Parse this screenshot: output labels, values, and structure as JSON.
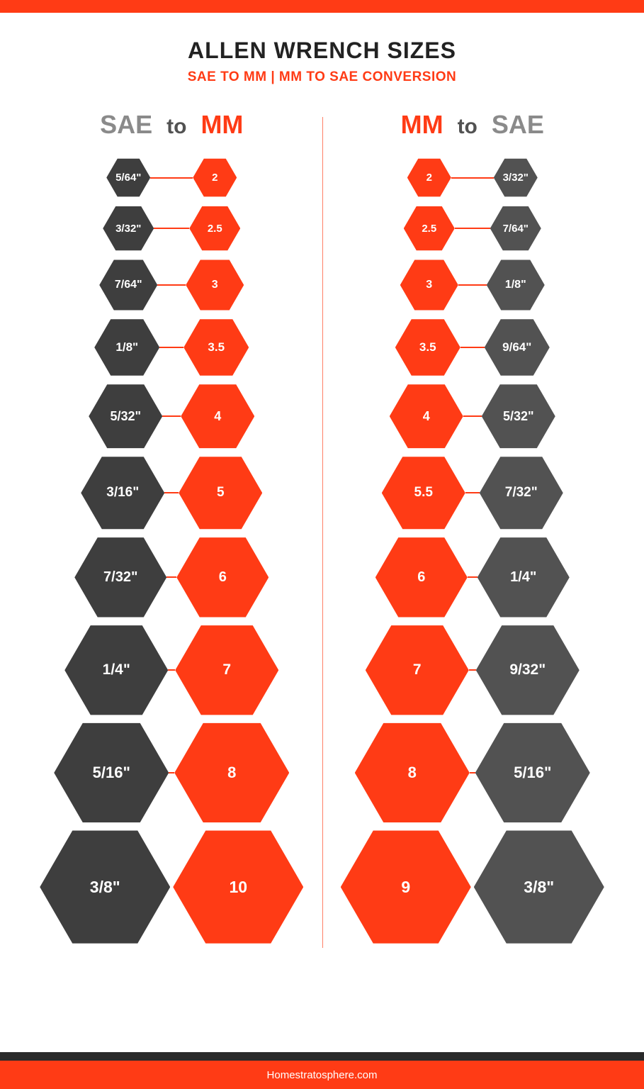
{
  "colors": {
    "orange": "#ff3b15",
    "dark_gray": "#3e3e3e",
    "mid_gray": "#525252",
    "light_gray_text": "#8a8a8a",
    "title_black": "#222222",
    "divider": "#ff8066",
    "footer_dark": "#2a2a2a"
  },
  "header": {
    "title": "ALLEN WRENCH SIZES",
    "title_fontsize": 32,
    "title_color": "#222222",
    "subtitle": "SAE TO MM  |  MM TO SAE CONVERSION",
    "subtitle_fontsize": 19,
    "subtitle_color": "#ff3b15"
  },
  "top_bar_color": "#ff3b15",
  "left_column": {
    "header": {
      "left": {
        "text": "SAE",
        "color": "#8a8a8a",
        "fontsize": 36
      },
      "mid": {
        "text": "to",
        "color": "#525252",
        "fontsize": 30
      },
      "right": {
        "text": "MM",
        "color": "#ff3b15",
        "fontsize": 36
      }
    },
    "rows": [
      {
        "left": "5/64\"",
        "right": "2",
        "size": 62,
        "conn": 60
      },
      {
        "left": "3/32\"",
        "right": "2.5",
        "size": 72,
        "conn": 50
      },
      {
        "left": "7/64\"",
        "right": "3",
        "size": 82,
        "conn": 40
      },
      {
        "left": "1/8\"",
        "right": "3.5",
        "size": 92,
        "conn": 34
      },
      {
        "left": "5/32\"",
        "right": "4",
        "size": 104,
        "conn": 26
      },
      {
        "left": "3/16\"",
        "right": "5",
        "size": 118,
        "conn": 20
      },
      {
        "left": "7/32\"",
        "right": "6",
        "size": 130,
        "conn": 14
      },
      {
        "left": "1/4\"",
        "right": "7",
        "size": 146,
        "conn": 10
      },
      {
        "left": "5/16\"",
        "right": "8",
        "size": 162,
        "conn": 8
      },
      {
        "left": "3/8\"",
        "right": "10",
        "size": 184,
        "conn": 0
      }
    ],
    "left_hex_color": "#3e3e3e",
    "right_hex_color": "#ff3b15",
    "connector_color": "#ff3b15"
  },
  "right_column": {
    "header": {
      "left": {
        "text": "MM",
        "color": "#ff3b15",
        "fontsize": 36
      },
      "mid": {
        "text": "to",
        "color": "#525252",
        "fontsize": 30
      },
      "right": {
        "text": "SAE",
        "color": "#8a8a8a",
        "fontsize": 36
      }
    },
    "rows": [
      {
        "left": "2",
        "right": "3/32\"",
        "size": 62,
        "conn": 60
      },
      {
        "left": "2.5",
        "right": "7/64\"",
        "size": 72,
        "conn": 50
      },
      {
        "left": "3",
        "right": "1/8\"",
        "size": 82,
        "conn": 40
      },
      {
        "left": "3.5",
        "right": "9/64\"",
        "size": 92,
        "conn": 34
      },
      {
        "left": "4",
        "right": "5/32\"",
        "size": 104,
        "conn": 26
      },
      {
        "left": "5.5",
        "right": "7/32\"",
        "size": 118,
        "conn": 20
      },
      {
        "left": "6",
        "right": "1/4\"",
        "size": 130,
        "conn": 14
      },
      {
        "left": "7",
        "right": "9/32\"",
        "size": 146,
        "conn": 10
      },
      {
        "left": "8",
        "right": "5/16\"",
        "size": 162,
        "conn": 8
      },
      {
        "left": "9",
        "right": "3/8\"",
        "size": 184,
        "conn": 0
      }
    ],
    "left_hex_color": "#ff3b15",
    "right_hex_color": "#525252",
    "connector_color": "#ff3b15"
  },
  "hex_label_color": "#ffffff",
  "hex_font_base": 18,
  "footer": {
    "dark_color": "#2a2a2a",
    "orange_color": "#ff3b15",
    "text": "Homestratosphere.com",
    "text_color": "#ffffff"
  }
}
